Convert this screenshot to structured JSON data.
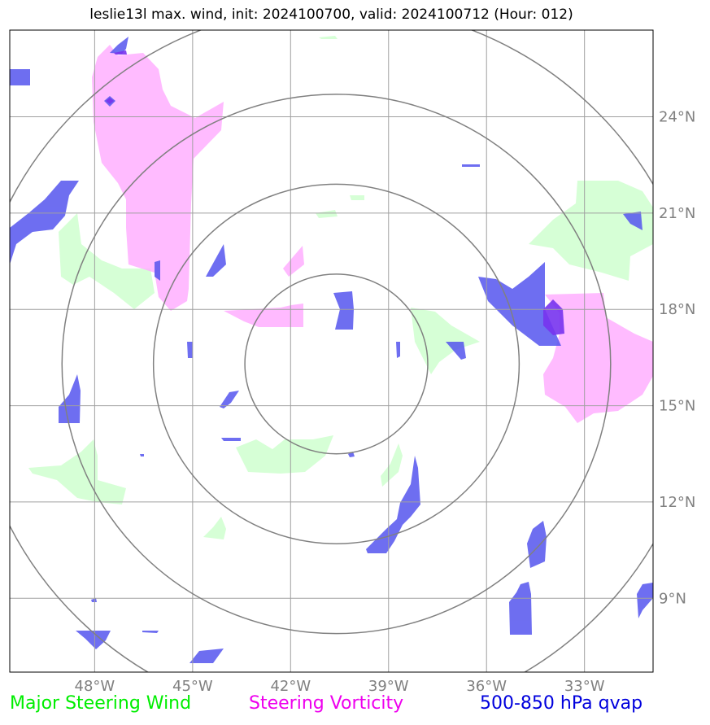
{
  "title": "leslie13l max. wind, init: 2024100700, valid: 2024100712 (Hour: 012)",
  "map": {
    "projection": "PlateCarree",
    "lon_range": [
      -50.6,
      -30.9
    ],
    "lat_range": [
      6.7,
      26.7
    ],
    "lon_ticks": [
      -48,
      -45,
      -42,
      -39,
      -36,
      -33
    ],
    "lat_ticks": [
      9,
      12,
      15,
      18,
      21,
      24
    ],
    "lon_tick_labels": [
      "48°W",
      "45°W",
      "42°W",
      "39°W",
      "36°W",
      "33°W"
    ],
    "lat_tick_labels": [
      "9°N",
      "12°N",
      "15°N",
      "18°N",
      "21°N",
      "24°N"
    ],
    "storm_center": {
      "lon": -40.6,
      "lat": 16.3
    },
    "range_rings_deg": [
      2.8,
      5.6,
      8.4,
      11.2
    ],
    "colors": {
      "grid": "#a0a0a0",
      "rings": "#808080",
      "steering_wind": "#ccffcc",
      "vorticity": "#ffaaff",
      "qvap": "#5555ee",
      "qvap_strong": "#7733ee"
    }
  },
  "legend": {
    "steering_wind": {
      "label": "Major Steering Wind",
      "color": "#00ee00"
    },
    "vorticity": {
      "label": "Steering Vorticity",
      "color": "#ee00ee"
    },
    "qvap": {
      "label": "500-850 hPa qvap",
      "color": "#0000dd"
    }
  }
}
